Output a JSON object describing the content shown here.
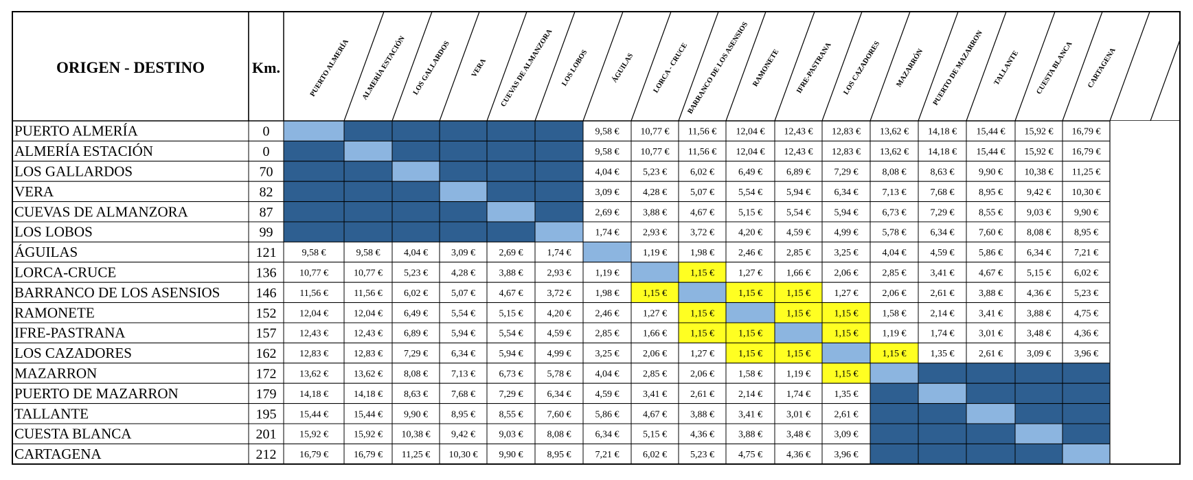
{
  "header": {
    "title": "ORIGEN - DESTINO",
    "km_label": "Km.",
    "destinations": [
      "PUERTO ALMERÍA",
      "ALMERÍA ESTACIÓN",
      "LOS GALLARDOS",
      "VERA",
      "CUEVAS DE ALMANZORA",
      "LOS LOBOS",
      "ÁGUILAS",
      "LORCA - CRUCE",
      "BARRANCO DE LOS ASENSIOS",
      "RAMONETE",
      "IFRE-PASTRANA",
      "LOS CAZADORES",
      "MAZARRÓN",
      "PUERTO DE MAZARRON",
      "TALLANTE",
      "CUESTA BLANCA",
      "CARTAGENA"
    ]
  },
  "colors": {
    "dark_blue": "#2E5F91",
    "light_blue": "#8CB5E0",
    "yellow": "#FFFF22",
    "white": "#FFFFFF",
    "border": "#000000"
  },
  "legend_codes": {
    "D": "dark_blue (no service)",
    "L": "light_blue (same stop)",
    "Y": "yellow (1,15 € fare)"
  },
  "rows": [
    {
      "name": "PUERTO ALMERÍA",
      "km": "0",
      "cells": [
        "L",
        "D",
        "D",
        "D",
        "D",
        "D",
        "9,58 €",
        "10,77 €",
        "11,56 €",
        "12,04 €",
        "12,43 €",
        "12,83 €",
        "13,62 €",
        "14,18 €",
        "15,44 €",
        "15,92 €",
        "16,79 €"
      ]
    },
    {
      "name": "ALMERÍA ESTACIÓN",
      "km": "0",
      "cells": [
        "D",
        "L",
        "D",
        "D",
        "D",
        "D",
        "9,58 €",
        "10,77 €",
        "11,56 €",
        "12,04 €",
        "12,43 €",
        "12,83 €",
        "13,62 €",
        "14,18 €",
        "15,44 €",
        "15,92 €",
        "16,79 €"
      ]
    },
    {
      "name": "LOS GALLARDOS",
      "km": "70",
      "cells": [
        "D",
        "D",
        "L",
        "D",
        "D",
        "D",
        "4,04 €",
        "5,23 €",
        "6,02 €",
        "6,49 €",
        "6,89 €",
        "7,29 €",
        "8,08 €",
        "8,63 €",
        "9,90 €",
        "10,38 €",
        "11,25 €"
      ]
    },
    {
      "name": "VERA",
      "km": "82",
      "cells": [
        "D",
        "D",
        "D",
        "L",
        "D",
        "D",
        "3,09 €",
        "4,28 €",
        "5,07 €",
        "5,54 €",
        "5,94 €",
        "6,34 €",
        "7,13 €",
        "7,68 €",
        "8,95 €",
        "9,42 €",
        "10,30 €"
      ]
    },
    {
      "name": "CUEVAS DE ALMANZORA",
      "km": "87",
      "cells": [
        "D",
        "D",
        "D",
        "D",
        "L",
        "D",
        "2,69 €",
        "3,88 €",
        "4,67 €",
        "5,15 €",
        "5,54 €",
        "5,94 €",
        "6,73 €",
        "7,29 €",
        "8,55 €",
        "9,03 €",
        "9,90 €"
      ]
    },
    {
      "name": "LOS LOBOS",
      "km": "99",
      "cells": [
        "D",
        "D",
        "D",
        "D",
        "D",
        "L",
        "1,74 €",
        "2,93 €",
        "3,72 €",
        "4,20 €",
        "4,59 €",
        "4,99 €",
        "5,78 €",
        "6,34 €",
        "7,60 €",
        "8,08 €",
        "8,95 €"
      ]
    },
    {
      "name": "ÁGUILAS",
      "km": "121",
      "cells": [
        "9,58 €",
        "9,58 €",
        "4,04 €",
        "3,09 €",
        "2,69 €",
        "1,74 €",
        "L",
        "1,19 €",
        "1,98 €",
        "2,46 €",
        "2,85 €",
        "3,25 €",
        "4,04 €",
        "4,59 €",
        "5,86 €",
        "6,34 €",
        "7,21 €"
      ]
    },
    {
      "name": "LORCA-CRUCE",
      "km": "136",
      "cells": [
        "10,77 €",
        "10,77 €",
        "5,23 €",
        "4,28 €",
        "3,88 €",
        "2,93 €",
        "1,19 €",
        "L",
        "Y:1,15 €",
        "1,27 €",
        "1,66 €",
        "2,06 €",
        "2,85 €",
        "3,41 €",
        "4,67 €",
        "5,15 €",
        "6,02 €"
      ]
    },
    {
      "name": "BARRANCO DE LOS ASENSIOS",
      "km": "146",
      "cells": [
        "11,56 €",
        "11,56 €",
        "6,02 €",
        "5,07 €",
        "4,67 €",
        "3,72 €",
        "1,98 €",
        "Y:1,15 €",
        "L",
        "Y:1,15 €",
        "Y:1,15 €",
        "1,27 €",
        "2,06 €",
        "2,61 €",
        "3,88 €",
        "4,36 €",
        "5,23 €"
      ]
    },
    {
      "name": "RAMONETE",
      "km": "152",
      "cells": [
        "12,04 €",
        "12,04 €",
        "6,49 €",
        "5,54 €",
        "5,15 €",
        "4,20 €",
        "2,46 €",
        "1,27 €",
        "Y:1,15 €",
        "L",
        "Y:1,15 €",
        "Y:1,15 €",
        "1,58 €",
        "2,14 €",
        "3,41 €",
        "3,88 €",
        "4,75 €"
      ]
    },
    {
      "name": "IFRE-PASTRANA",
      "km": "157",
      "cells": [
        "12,43 €",
        "12,43 €",
        "6,89 €",
        "5,94 €",
        "5,54 €",
        "4,59 €",
        "2,85 €",
        "1,66 €",
        "Y:1,15 €",
        "Y:1,15 €",
        "L",
        "Y:1,15 €",
        "1,19 €",
        "1,74 €",
        "3,01 €",
        "3,48 €",
        "4,36 €"
      ]
    },
    {
      "name": "LOS CAZADORES",
      "km": "162",
      "cells": [
        "12,83 €",
        "12,83 €",
        "7,29 €",
        "6,34 €",
        "5,94 €",
        "4,99 €",
        "3,25 €",
        "2,06 €",
        "1,27 €",
        "Y:1,15 €",
        "Y:1,15 €",
        "L",
        "Y:1,15 €",
        "1,35 €",
        "2,61 €",
        "3,09 €",
        "3,96 €"
      ]
    },
    {
      "name": "MAZARRON",
      "km": "172",
      "cells": [
        "13,62 €",
        "13,62 €",
        "8,08 €",
        "7,13 €",
        "6,73 €",
        "5,78 €",
        "4,04 €",
        "2,85 €",
        "2,06 €",
        "1,58 €",
        "1,19 €",
        "Y:1,15 €",
        "L",
        "D",
        "D",
        "D",
        "D"
      ]
    },
    {
      "name": "PUERTO DE MAZARRON",
      "km": "179",
      "cells": [
        "14,18 €",
        "14,18 €",
        "8,63 €",
        "7,68 €",
        "7,29 €",
        "6,34 €",
        "4,59 €",
        "3,41 €",
        "2,61 €",
        "2,14 €",
        "1,74 €",
        "1,35 €",
        "D",
        "L",
        "D",
        "D",
        "D"
      ]
    },
    {
      "name": "TALLANTE",
      "km": "195",
      "cells": [
        "15,44 €",
        "15,44 €",
        "9,90 €",
        "8,95 €",
        "8,55 €",
        "7,60 €",
        "5,86 €",
        "4,67 €",
        "3,88 €",
        "3,41 €",
        "3,01 €",
        "2,61 €",
        "D",
        "D",
        "L",
        "D",
        "D"
      ]
    },
    {
      "name": "CUESTA BLANCA",
      "km": "201",
      "cells": [
        "15,92 €",
        "15,92 €",
        "10,38 €",
        "9,42 €",
        "9,03 €",
        "8,08 €",
        "6,34 €",
        "5,15 €",
        "4,36 €",
        "3,88 €",
        "3,48 €",
        "3,09 €",
        "D",
        "D",
        "D",
        "L",
        "D"
      ]
    },
    {
      "name": "CARTAGENA",
      "km": "212",
      "cells": [
        "16,79 €",
        "16,79 €",
        "11,25 €",
        "10,30 €",
        "9,90 €",
        "8,95 €",
        "7,21 €",
        "6,02 €",
        "5,23 €",
        "4,75 €",
        "4,36 €",
        "3,96 €",
        "D",
        "D",
        "D",
        "D",
        "L"
      ]
    }
  ]
}
